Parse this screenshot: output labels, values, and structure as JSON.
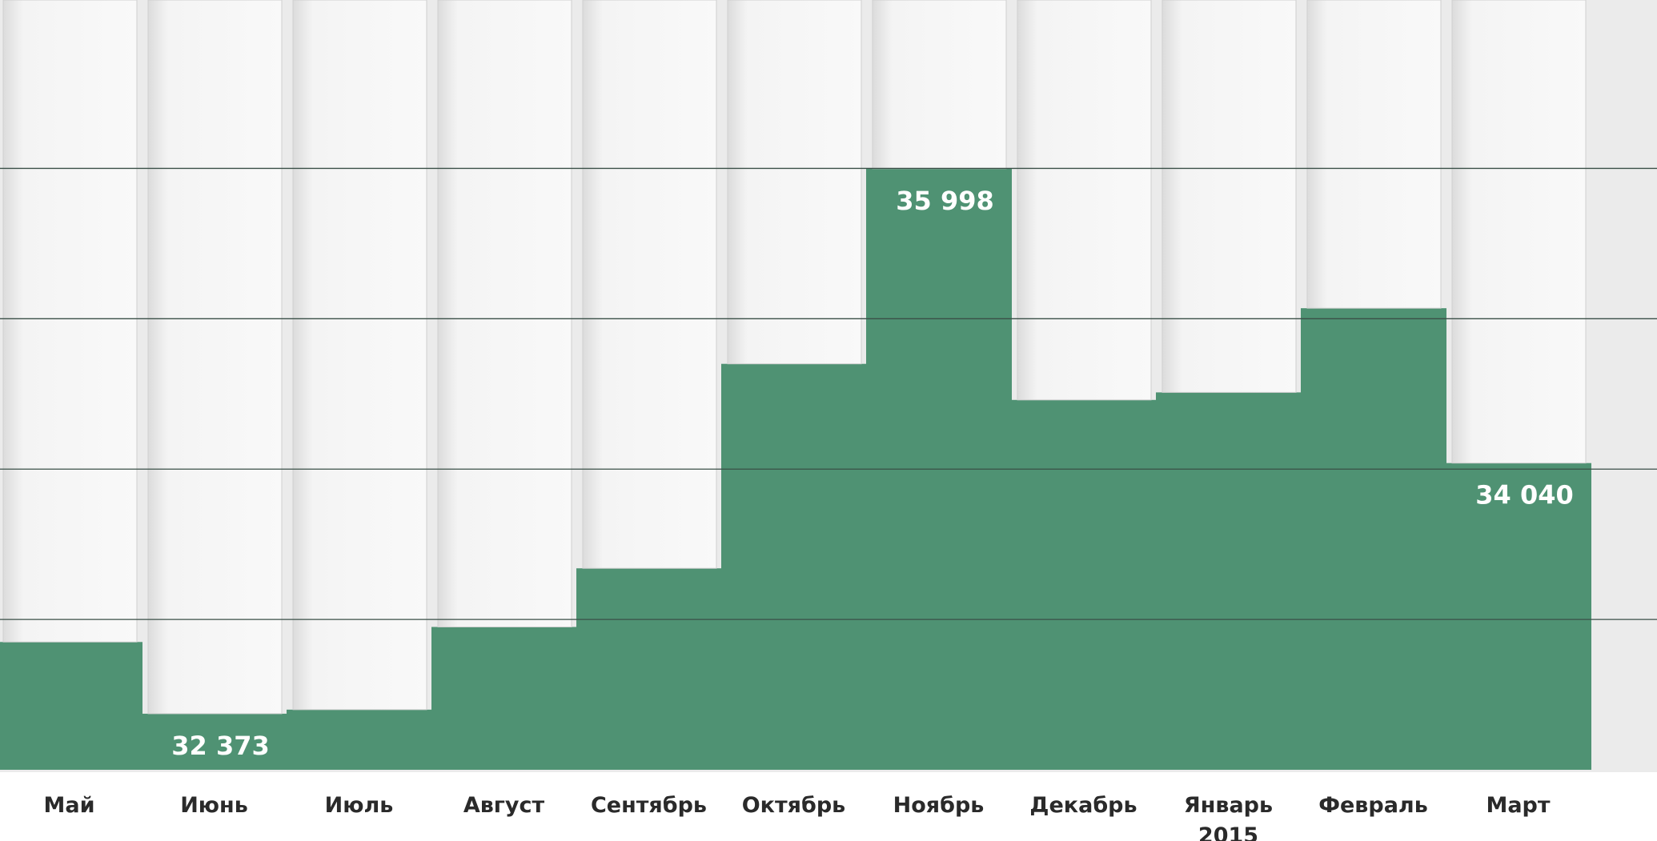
{
  "chart_data": {
    "type": "paper-strip-bar",
    "categories": [
      "Май",
      "Июнь",
      "Июль",
      "Август",
      "Сентябрь",
      "Октябрь",
      "Ноябрь",
      "Декабрь",
      "Январь 2015",
      "Февраль",
      "Март"
    ],
    "values": [
      32850,
      32373,
      32400,
      32950,
      33340,
      34700,
      35998,
      34460,
      34510,
      35070,
      34040
    ],
    "value_labels": [
      null,
      "32 373",
      null,
      null,
      null,
      null,
      "35 998",
      null,
      null,
      null,
      "34 040"
    ],
    "color": "#4f9273",
    "ylim": [
      32000,
      37120
    ],
    "yticks": [
      33000,
      34000,
      35000,
      36000
    ],
    "grid": true
  }
}
